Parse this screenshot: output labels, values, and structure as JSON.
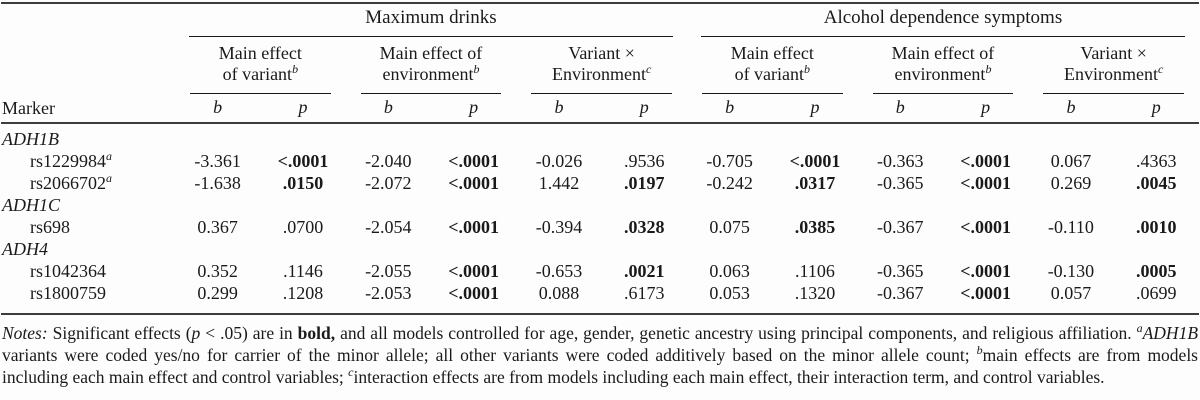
{
  "table": {
    "marker_header": "Marker",
    "groups": [
      {
        "label": "Maximum drinks"
      },
      {
        "label": "Alcohol dependence symptoms"
      }
    ],
    "effects": [
      {
        "line1": "Main effect",
        "line2": "of variant",
        "sup": "b"
      },
      {
        "line1": "Main effect of",
        "line2": "environment",
        "sup": "b"
      },
      {
        "line1": "Variant ×",
        "line2": "Environment",
        "sup": "c"
      }
    ],
    "stat_headers": {
      "b": "b",
      "p": "p"
    },
    "rows": [
      {
        "kind": "gene",
        "label": "ADH1B"
      },
      {
        "kind": "marker",
        "label": "rs1229984",
        "sup": "a",
        "values": [
          {
            "v": "-3.361",
            "bold": false
          },
          {
            "v": "<.0001",
            "bold": true
          },
          {
            "v": "-2.040",
            "bold": false
          },
          {
            "v": "<.0001",
            "bold": true
          },
          {
            "v": "-0.026",
            "bold": false
          },
          {
            "v": ".9536",
            "bold": false
          },
          {
            "v": "-0.705",
            "bold": false
          },
          {
            "v": "<.0001",
            "bold": true
          },
          {
            "v": "-0.363",
            "bold": false
          },
          {
            "v": "<.0001",
            "bold": true
          },
          {
            "v": "0.067",
            "bold": false
          },
          {
            "v": ".4363",
            "bold": false
          }
        ]
      },
      {
        "kind": "marker",
        "label": "rs2066702",
        "sup": "a",
        "values": [
          {
            "v": "-1.638",
            "bold": false
          },
          {
            "v": ".0150",
            "bold": true
          },
          {
            "v": "-2.072",
            "bold": false
          },
          {
            "v": "<.0001",
            "bold": true
          },
          {
            "v": "1.442",
            "bold": false
          },
          {
            "v": ".0197",
            "bold": true
          },
          {
            "v": "-0.242",
            "bold": false
          },
          {
            "v": ".0317",
            "bold": true
          },
          {
            "v": "-0.365",
            "bold": false
          },
          {
            "v": "<.0001",
            "bold": true
          },
          {
            "v": "0.269",
            "bold": false
          },
          {
            "v": ".0045",
            "bold": true
          }
        ]
      },
      {
        "kind": "gene",
        "label": "ADH1C"
      },
      {
        "kind": "marker",
        "label": "rs698",
        "values": [
          {
            "v": "0.367",
            "bold": false
          },
          {
            "v": ".0700",
            "bold": false
          },
          {
            "v": "-2.054",
            "bold": false
          },
          {
            "v": "<.0001",
            "bold": true
          },
          {
            "v": "-0.394",
            "bold": false
          },
          {
            "v": ".0328",
            "bold": true
          },
          {
            "v": "0.075",
            "bold": false
          },
          {
            "v": ".0385",
            "bold": true
          },
          {
            "v": "-0.367",
            "bold": false
          },
          {
            "v": "<.0001",
            "bold": true
          },
          {
            "v": "-0.110",
            "bold": false
          },
          {
            "v": ".0010",
            "bold": true
          }
        ]
      },
      {
        "kind": "gene",
        "label": "ADH4"
      },
      {
        "kind": "marker",
        "label": "rs1042364",
        "values": [
          {
            "v": "0.352",
            "bold": false
          },
          {
            "v": ".1146",
            "bold": false
          },
          {
            "v": "-2.055",
            "bold": false
          },
          {
            "v": "<.0001",
            "bold": true
          },
          {
            "v": "-0.653",
            "bold": false
          },
          {
            "v": ".0021",
            "bold": true
          },
          {
            "v": "0.063",
            "bold": false
          },
          {
            "v": ".1106",
            "bold": false
          },
          {
            "v": "-0.365",
            "bold": false
          },
          {
            "v": "<.0001",
            "bold": true
          },
          {
            "v": "-0.130",
            "bold": false
          },
          {
            "v": ".0005",
            "bold": true
          }
        ]
      },
      {
        "kind": "marker",
        "label": "rs1800759",
        "values": [
          {
            "v": "0.299",
            "bold": false
          },
          {
            "v": ".1208",
            "bold": false
          },
          {
            "v": "-2.053",
            "bold": false
          },
          {
            "v": "<.0001",
            "bold": true
          },
          {
            "v": "0.088",
            "bold": false
          },
          {
            "v": ".6173",
            "bold": false
          },
          {
            "v": "0.053",
            "bold": false
          },
          {
            "v": ".1320",
            "bold": false
          },
          {
            "v": "-0.367",
            "bold": false
          },
          {
            "v": "<.0001",
            "bold": true
          },
          {
            "v": "0.057",
            "bold": false
          },
          {
            "v": ".0699",
            "bold": false
          }
        ]
      }
    ]
  },
  "notes": {
    "parts": [
      {
        "text": "Notes:"
      },
      {
        "text": " Significant effects ("
      },
      {
        "text": "p"
      },
      {
        "text": " < .05) are in "
      },
      {
        "text": "bold,"
      },
      {
        "text": " and all models controlled for age, gender, genetic ancestry using principal components, and religious affiliation. "
      },
      {
        "text": "a"
      },
      {
        "text": "ADH1B"
      },
      {
        "text": " variants were coded yes/no for carrier of the minor allele; all other variants were coded additively based on the minor allele count; "
      },
      {
        "text": "b"
      },
      {
        "text": "main effects are from models including each main effect and control variables; "
      },
      {
        "text": "c"
      },
      {
        "text": "interaction effects are from models including each main effect, their interaction term, and control variables."
      }
    ]
  }
}
